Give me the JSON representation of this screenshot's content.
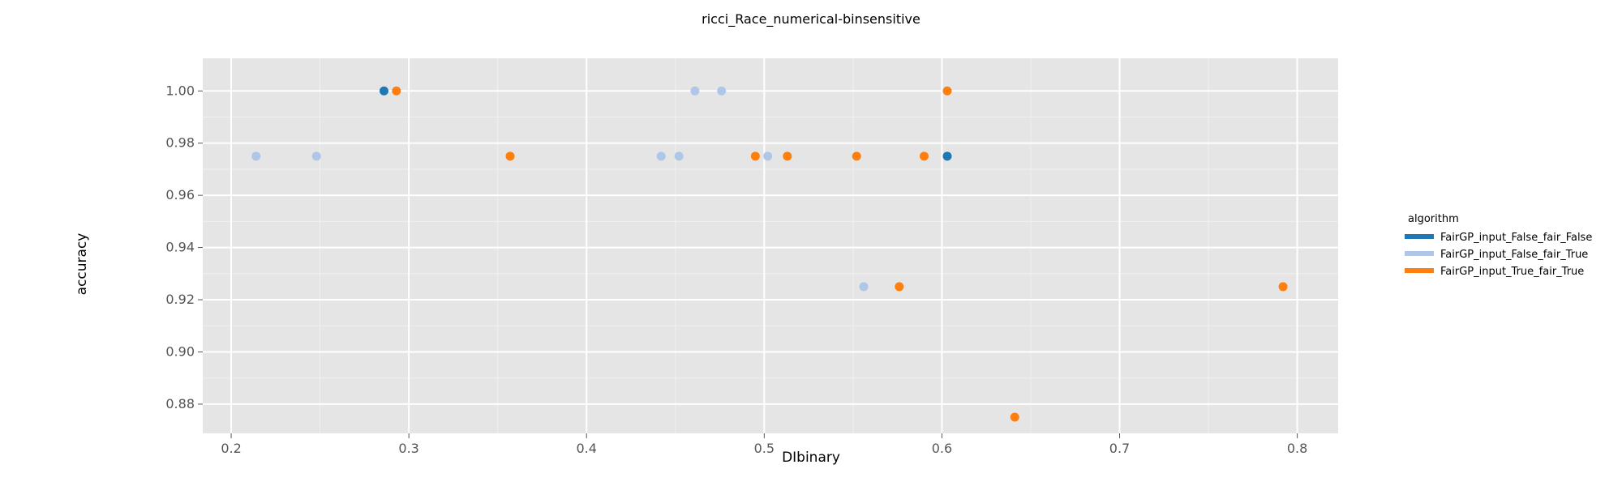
{
  "chart_data": {
    "type": "scatter",
    "title": "ricci_Race_numerical-binsensitive",
    "xlabel": "DIbinary",
    "ylabel": "accuracy",
    "xlim": [
      0.184,
      0.823
    ],
    "ylim": [
      0.8688,
      1.0125
    ],
    "x_ticks": [
      "0.2",
      "0.3",
      "0.4",
      "0.5",
      "0.6",
      "0.7",
      "0.8"
    ],
    "y_ticks": [
      "0.88",
      "0.90",
      "0.92",
      "0.94",
      "0.96",
      "0.98",
      "1.00"
    ],
    "grid": true,
    "legend": {
      "title": "algorithm",
      "placement": "right"
    },
    "series": [
      {
        "name": "FairGP_input_False_fair_False",
        "color": "#1f77b4",
        "points": [
          {
            "x": 0.286,
            "y": 1.0
          },
          {
            "x": 0.603,
            "y": 0.975
          }
        ]
      },
      {
        "name": "FairGP_input_False_fair_True",
        "color": "#aec7e8",
        "points": [
          {
            "x": 0.214,
            "y": 0.975
          },
          {
            "x": 0.248,
            "y": 0.975
          },
          {
            "x": 0.442,
            "y": 0.975
          },
          {
            "x": 0.452,
            "y": 0.975
          },
          {
            "x": 0.461,
            "y": 1.0
          },
          {
            "x": 0.476,
            "y": 1.0
          },
          {
            "x": 0.502,
            "y": 0.975
          },
          {
            "x": 0.556,
            "y": 0.925
          }
        ]
      },
      {
        "name": "FairGP_input_True_fair_True",
        "color": "#ff7f0e",
        "points": [
          {
            "x": 0.293,
            "y": 1.0
          },
          {
            "x": 0.357,
            "y": 0.975
          },
          {
            "x": 0.495,
            "y": 0.975
          },
          {
            "x": 0.513,
            "y": 0.975
          },
          {
            "x": 0.552,
            "y": 0.975
          },
          {
            "x": 0.576,
            "y": 0.925
          },
          {
            "x": 0.59,
            "y": 0.975
          },
          {
            "x": 0.603,
            "y": 1.0
          },
          {
            "x": 0.641,
            "y": 0.875
          },
          {
            "x": 0.792,
            "y": 0.925
          }
        ]
      }
    ]
  }
}
